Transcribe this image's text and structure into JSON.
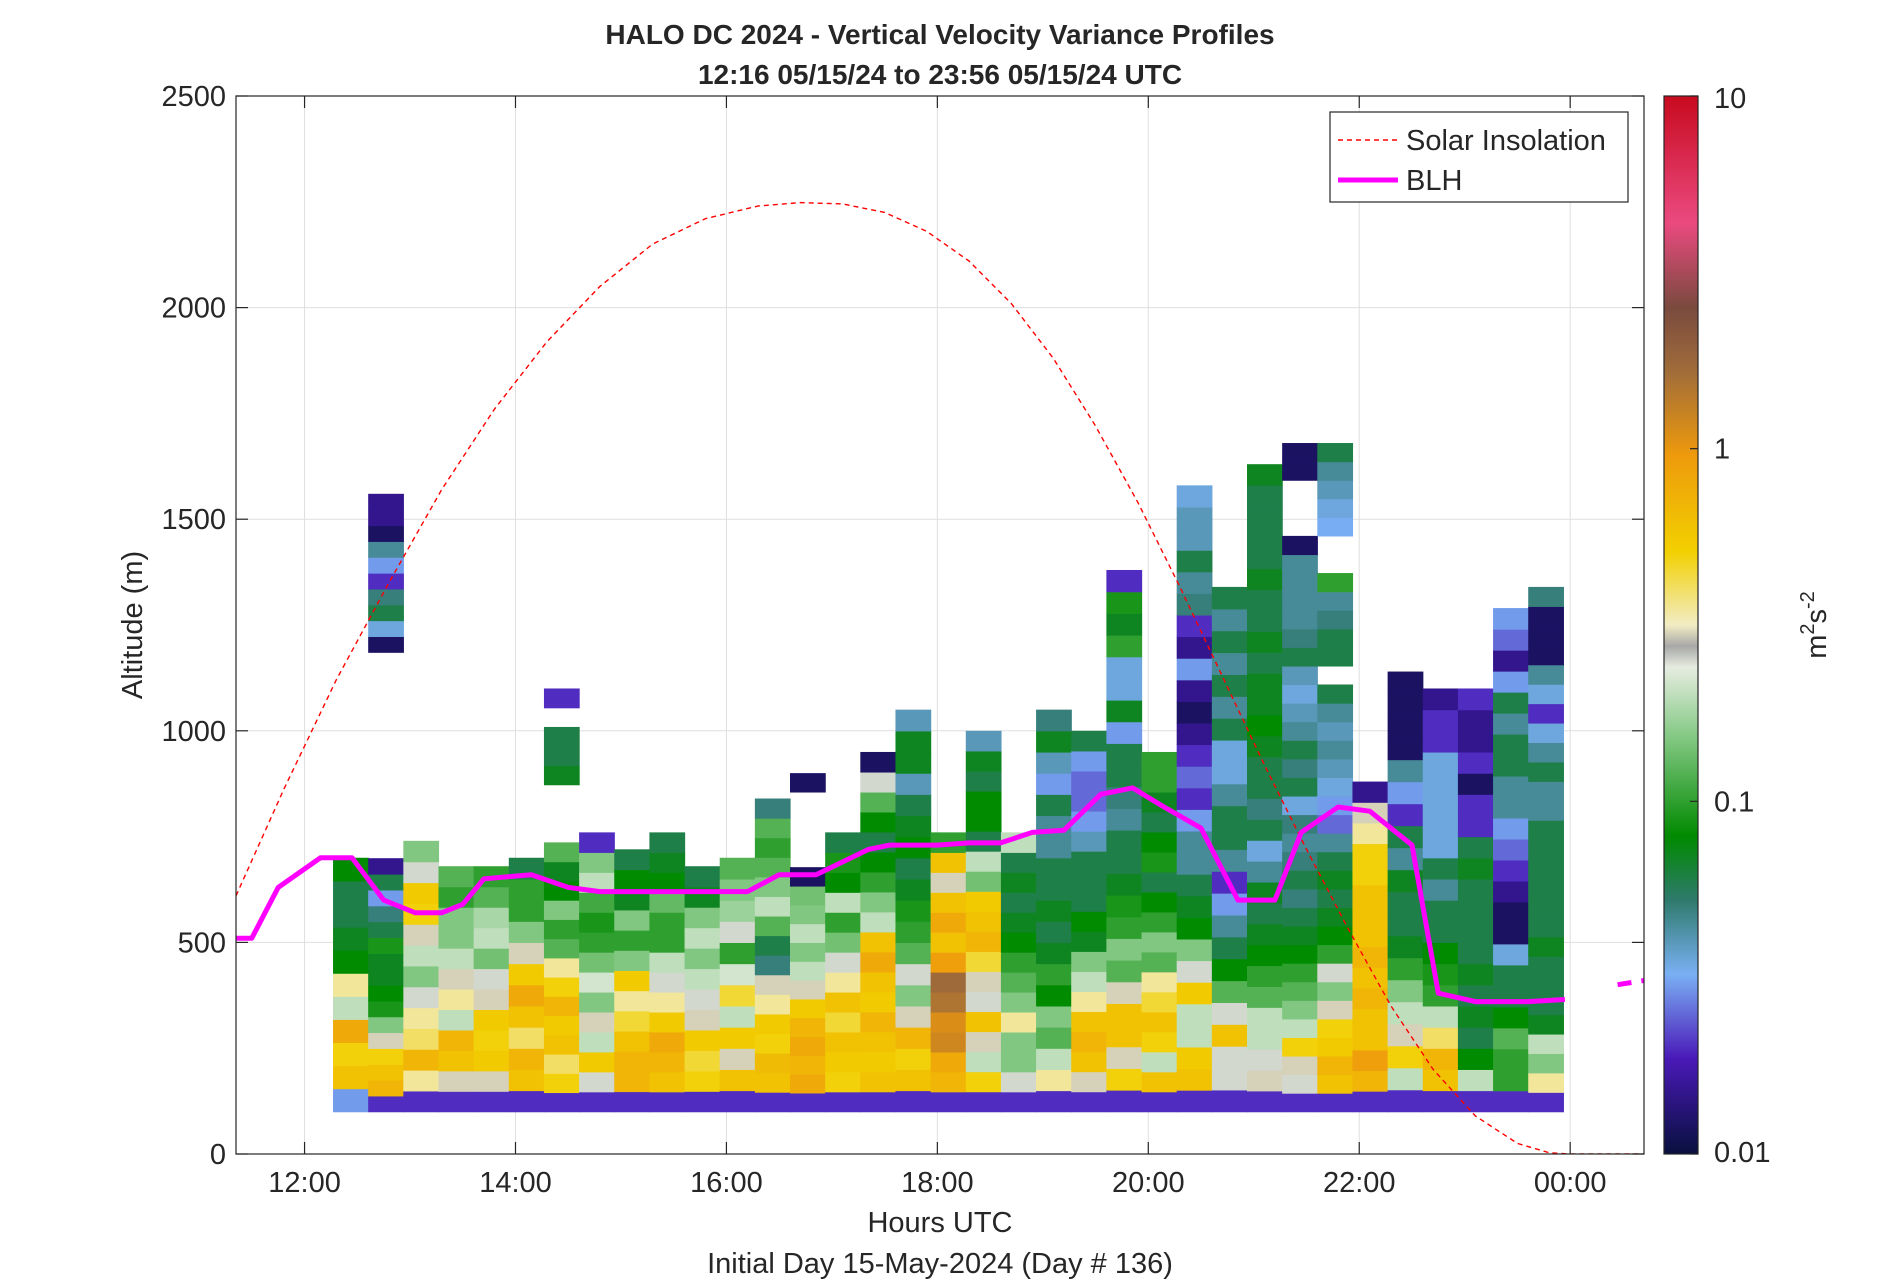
{
  "chart_data": {
    "type": "heatmap",
    "title": "HALO DC 2024 - Vertical Velocity Variance Profiles",
    "subtitle": "12:16 05/15/24 to 23:56 05/15/24  UTC",
    "xlabel": "Hours UTC",
    "xlabel2": "Initial Day 15-May-2024 (Day # 136)",
    "ylabel": "Altitude (m)",
    "xlim": [
      11.35,
      24.7
    ],
    "ylim": [
      0,
      2500
    ],
    "x_ticks": [
      12,
      14,
      16,
      18,
      20,
      22,
      24
    ],
    "x_tick_labels": [
      "12:00",
      "14:00",
      "16:00",
      "18:00",
      "20:00",
      "22:00",
      "00:00"
    ],
    "y_ticks": [
      0,
      500,
      1000,
      1500,
      2000,
      2500
    ],
    "y_tick_labels": [
      "0",
      "500",
      "1000",
      "1500",
      "2000",
      "2500"
    ],
    "grid": true,
    "legend_position": "top-right",
    "colorbar": {
      "label_base": "m",
      "label_sup1": "2",
      "label_mid": "s",
      "label_sup2": "-2",
      "scale": "log",
      "range": [
        0.01,
        10
      ],
      "ticks": [
        0.01,
        0.1,
        1,
        10
      ],
      "tick_labels": [
        "0.01",
        "0.1",
        "1",
        "10"
      ]
    },
    "heatmap": {
      "x_start": 12.27,
      "x_step": 0.3333,
      "y_start": 100,
      "y_step": 48,
      "columns": [
        {
          "top": 700,
          "cells": [
            0.03,
            0.6,
            0.5,
            0.8,
            0.2,
            0.35,
            0.08,
            0.07,
            0.06,
            0.06,
            0.08
          ]
        },
        {
          "top": 1560,
          "cells": [
            0.02,
            0.7,
            0.6,
            0.5,
            0.3,
            0.15,
            0.09,
            0.08,
            0.07,
            0.07,
            0.09,
            0.06,
            0.05,
            0.03,
            0.06,
            0.015,
            null,
            null,
            null,
            null,
            null,
            null,
            null,
            null,
            null,
            null,
            null,
            null,
            null,
            0.012,
            0.035,
            0.06,
            0.05,
            0.02,
            0.03,
            0.045,
            0.012,
            0.015,
            0.015
          ]
        },
        {
          "top": 740,
          "cells": [
            0.02,
            0.35,
            0.7,
            0.4,
            0.35,
            0.25,
            0.15,
            0.2,
            0.3,
            0.5,
            0.55,
            0.25,
            0.15
          ]
        },
        {
          "top": 680,
          "cells": [
            0.02,
            0.3,
            0.6,
            0.7,
            0.2,
            0.35,
            0.3,
            0.2,
            0.15,
            0.15,
            0.1,
            0.12
          ]
        },
        {
          "top": 680,
          "cells": [
            0.02,
            0.3,
            0.55,
            0.5,
            0.55,
            0.3,
            0.25,
            0.14,
            0.2,
            0.18,
            0.12,
            0.1
          ]
        },
        {
          "top": 700,
          "cells": [
            0.02,
            0.6,
            0.7,
            0.4,
            0.6,
            0.8,
            0.55,
            0.3,
            0.15,
            0.1,
            0.1,
            0.06
          ]
        },
        {
          "top": 1100,
          "cells": [
            0.02,
            0.5,
            0.4,
            0.6,
            0.55,
            0.7,
            0.5,
            0.35,
            0.12,
            0.1,
            0.15,
            0.08,
            0.07,
            0.12,
            null,
            null,
            null,
            0.07,
            0.06,
            0.06,
            null,
            0.02
          ]
        },
        {
          "top": 760,
          "cells": [
            0.02,
            0.25,
            0.55,
            0.2,
            0.3,
            0.15,
            0.22,
            0.14,
            0.1,
            0.09,
            0.11,
            0.2,
            0.15,
            0.02
          ]
        },
        {
          "top": 720,
          "cells": [
            0.02,
            0.7,
            0.7,
            0.6,
            0.45,
            0.35,
            0.55,
            0.15,
            0.1,
            0.15,
            0.07,
            0.08,
            0.06
          ]
        },
        {
          "top": 760,
          "cells": [
            0.02,
            0.6,
            0.7,
            0.8,
            0.55,
            0.35,
            0.25,
            0.2,
            0.1,
            0.1,
            0.13,
            0.08,
            0.07,
            0.06
          ]
        },
        {
          "top": 680,
          "cells": [
            0.02,
            0.5,
            0.45,
            0.55,
            0.3,
            0.25,
            0.2,
            0.15,
            0.2,
            0.15,
            0.07,
            0.06
          ]
        },
        {
          "top": 700,
          "cells": [
            0.02,
            0.6,
            0.3,
            0.55,
            0.2,
            0.45,
            0.22,
            0.1,
            0.25,
            0.17,
            0.15,
            0.12
          ]
        },
        {
          "top": 840,
          "cells": [
            0.02,
            0.6,
            0.65,
            0.5,
            0.55,
            0.35,
            0.3,
            0.05,
            0.06,
            0.12,
            0.2,
            0.15,
            0.12,
            0.1,
            0.12,
            0.05
          ]
        },
        {
          "top": 900,
          "cells": [
            0.02,
            0.8,
            0.7,
            0.8,
            0.7,
            0.55,
            0.3,
            0.2,
            0.15,
            0.2,
            0.15,
            0.14,
            0.012,
            null,
            null,
            null,
            null,
            0.012
          ]
        },
        {
          "top": 760,
          "cells": [
            0.02,
            0.5,
            0.55,
            0.6,
            0.45,
            0.6,
            0.35,
            0.25,
            0.14,
            0.1,
            0.2,
            0.08,
            0.09,
            0.06
          ]
        },
        {
          "top": 950,
          "cells": [
            0.02,
            0.6,
            0.55,
            0.6,
            0.7,
            0.55,
            0.6,
            0.8,
            0.6,
            0.2,
            0.15,
            0.1,
            0.08,
            0.06,
            0.08,
            0.12,
            0.25,
            0.012
          ]
        },
        {
          "top": 1050,
          "cells": [
            0.02,
            0.6,
            0.5,
            0.7,
            0.3,
            0.15,
            0.25,
            0.12,
            0.1,
            0.09,
            0.07,
            0.06,
            0.08,
            0.07,
            0.06,
            0.04,
            0.07,
            0.07,
            0.04
          ]
        },
        {
          "top": 760,
          "cells": [
            0.02,
            0.7,
            0.8,
            1.2,
            1.1,
            1.5,
            1.7,
            0.9,
            0.6,
            0.8,
            0.6,
            0.3,
            0.6,
            0.1
          ]
        },
        {
          "top": 1000,
          "cells": [
            0.02,
            0.5,
            0.2,
            0.3,
            0.6,
            0.25,
            0.3,
            0.45,
            0.7,
            0.6,
            0.55,
            0.14,
            0.2,
            0.06,
            0.08,
            0.08,
            0.06,
            0.07,
            0.04
          ]
        },
        {
          "top": 760,
          "cells": [
            0.02,
            0.25,
            0.15,
            0.15,
            0.35,
            0.15,
            0.12,
            0.1,
            0.08,
            0.07,
            0.06,
            0.07,
            0.06,
            0.2
          ]
        },
        {
          "top": 1050,
          "cells": [
            0.02,
            0.35,
            0.2,
            0.12,
            0.15,
            0.08,
            0.1,
            0.07,
            0.06,
            0.07,
            0.06,
            0.06,
            0.045,
            0.045,
            0.06,
            0.03,
            0.04,
            0.07,
            0.05
          ]
        },
        {
          "top": 1000,
          "cells": [
            0.02,
            0.3,
            0.6,
            0.7,
            0.6,
            0.35,
            0.2,
            0.15,
            0.07,
            0.08,
            0.06,
            0.06,
            0.06,
            0.04,
            0.03,
            0.025,
            0.025,
            0.03,
            0.06
          ]
        },
        {
          "top": 1380,
          "cells": [
            0.02,
            0.5,
            0.3,
            0.6,
            0.6,
            0.3,
            0.12,
            0.15,
            0.1,
            0.09,
            0.07,
            0.06,
            0.06,
            0.045,
            0.05,
            0.06,
            0.06,
            0.03,
            0.07,
            0.035,
            0.035,
            0.1,
            0.07,
            0.09,
            0.02
          ]
        },
        {
          "top": 950,
          "cells": [
            0.02,
            0.6,
            0.2,
            0.5,
            0.6,
            0.45,
            0.35,
            0.12,
            0.15,
            0.1,
            0.08,
            0.06,
            0.09,
            0.08,
            0.06,
            0.07,
            0.1,
            0.1
          ]
        },
        {
          "top": 1580,
          "cells": [
            0.02,
            0.6,
            0.55,
            0.2,
            0.2,
            0.55,
            0.25,
            0.15,
            0.08,
            0.07,
            0.06,
            0.045,
            0.045,
            0.03,
            0.02,
            0.025,
            0.02,
            0.015,
            0.012,
            0.015,
            0.03,
            0.015,
            0.02,
            0.05,
            0.045,
            0.06,
            0.04,
            0.04,
            0.035
          ]
        },
        {
          "top": 1340,
          "cells": [
            0.02,
            0.25,
            0.25,
            0.6,
            0.25,
            0.12,
            0.08,
            0.06,
            0.045,
            0.03,
            0.02,
            0.045,
            0.06,
            0.06,
            0.045,
            0.035,
            0.035,
            0.06,
            0.045,
            0.06,
            0.045,
            0.06,
            0.045,
            0.06
          ]
        },
        {
          "top": 1630,
          "cells": [
            0.02,
            0.3,
            0.25,
            0.2,
            0.2,
            0.12,
            0.1,
            0.08,
            0.07,
            0.06,
            0.07,
            0.045,
            0.035,
            0.06,
            0.05,
            0.06,
            0.06,
            0.07,
            0.08,
            0.07,
            0.07,
            0.06,
            0.07,
            0.06,
            0.06,
            0.07,
            0.06,
            0.06,
            0.06,
            0.06,
            0.07
          ]
        },
        {
          "top": 1680,
          "cells": [
            0.02,
            0.25,
            0.3,
            0.5,
            0.2,
            0.15,
            0.12,
            0.1,
            0.08,
            0.07,
            0.06,
            0.05,
            0.06,
            0.05,
            0.045,
            0.05,
            0.035,
            0.06,
            0.05,
            0.06,
            0.045,
            0.04,
            0.035,
            0.04,
            0.06,
            0.05,
            0.045,
            0.045,
            0.045,
            0.045,
            0.012,
            null,
            null,
            null,
            0.012,
            0.012
          ]
        },
        {
          "top": 1680,
          "cells": [
            0.02,
            0.6,
            0.7,
            0.55,
            0.5,
            0.3,
            0.15,
            0.25,
            0.1,
            0.08,
            0.07,
            0.06,
            0.07,
            0.06,
            0.045,
            0.025,
            0.03,
            0.035,
            0.04,
            0.045,
            0.04,
            0.045,
            0.06,
            null,
            0.06,
            0.06,
            0.05,
            0.045,
            0.1,
            null,
            null,
            0.032,
            0.035,
            0.04,
            0.045,
            0.06
          ]
        },
        {
          "top": 880,
          "cells": [
            0.02,
            0.7,
            0.9,
            0.6,
            0.6,
            0.7,
            0.6,
            0.7,
            0.6,
            0.6,
            0.6,
            0.5,
            0.5,
            0.35,
            0.3,
            0.015
          ]
        },
        {
          "top": 1140,
          "cells": [
            0.02,
            0.2,
            0.5,
            0.3,
            0.2,
            0.15,
            0.1,
            0.07,
            0.06,
            0.06,
            0.07,
            0.045,
            0.06,
            0.02,
            0.03,
            0.045,
            0.012,
            0.012,
            0.012,
            0.012
          ]
        },
        {
          "top": 1100,
          "cells": [
            0.02,
            0.6,
            0.7,
            0.4,
            0.2,
            0.1,
            0.09,
            0.08,
            0.06,
            0.06,
            0.045,
            0.06,
            0.035,
            0.035,
            0.035,
            0.035,
            0.035,
            0.02,
            0.02,
            0.015
          ]
        },
        {
          "top": 1100,
          "cells": [
            0.02,
            0.2,
            0.08,
            0.06,
            0.07,
            0.06,
            0.07,
            0.06,
            0.06,
            0.06,
            0.06,
            0.07,
            0.06,
            0.02,
            0.02,
            0.012,
            0.02,
            0.015,
            0.015,
            0.02
          ]
        },
        {
          "top": 1290,
          "cells": [
            0.02,
            0.1,
            0.1,
            0.12,
            0.08,
            0.06,
            0.06,
            0.035,
            0.012,
            0.012,
            0.015,
            0.02,
            0.025,
            0.03,
            0.045,
            0.045,
            0.06,
            0.06,
            0.045,
            0.06,
            0.03,
            0.015,
            0.025,
            0.03
          ]
        },
        {
          "top": 1340,
          "cells": [
            0.02,
            0.35,
            0.15,
            0.2,
            0.07,
            0.06,
            0.06,
            0.06,
            0.07,
            0.06,
            0.06,
            0.06,
            0.06,
            0.06,
            0.06,
            0.045,
            0.045,
            0.06,
            0.045,
            0.035,
            0.02,
            0.035,
            0.045,
            0.012,
            0.012,
            0.012,
            0.05
          ]
        }
      ]
    },
    "series": [
      {
        "name": "Solar Insolation",
        "color": "#ff0000",
        "style": "dashed",
        "x": [
          11.35,
          11.8,
          12.3,
          12.8,
          13.3,
          13.8,
          14.3,
          14.8,
          15.3,
          15.8,
          16.3,
          16.7,
          17.1,
          17.5,
          17.9,
          18.3,
          18.7,
          19.1,
          19.5,
          19.9,
          20.3,
          20.7,
          21.1,
          21.5,
          21.9,
          22.3,
          22.7,
          23.1,
          23.5,
          23.8,
          24.0,
          24.2,
          24.7
        ],
        "y": [
          610,
          860,
          1120,
          1350,
          1570,
          1760,
          1920,
          2050,
          2150,
          2210,
          2240,
          2248,
          2245,
          2225,
          2180,
          2110,
          2010,
          1880,
          1720,
          1540,
          1340,
          1130,
          920,
          720,
          530,
          350,
          200,
          90,
          25,
          3,
          0,
          0,
          0
        ]
      },
      {
        "name": "BLH",
        "color": "#ff00ff",
        "style": "solid",
        "x": [
          11.35,
          11.5,
          11.75,
          12.15,
          12.45,
          12.75,
          13.05,
          13.3,
          13.5,
          13.7,
          14.15,
          14.5,
          14.8,
          15.2,
          15.8,
          16.2,
          16.5,
          16.85,
          17.1,
          17.35,
          17.55,
          18.0,
          18.3,
          18.6,
          18.9,
          19.2,
          19.55,
          19.85,
          20.15,
          20.5,
          20.85,
          21.2,
          21.45,
          21.8,
          22.1,
          22.5,
          22.75,
          23.1,
          23.35,
          23.6,
          23.95
        ],
        "y": [
          510,
          510,
          630,
          700,
          700,
          600,
          570,
          570,
          590,
          650,
          660,
          630,
          620,
          620,
          620,
          620,
          660,
          660,
          690,
          720,
          730,
          730,
          735,
          735,
          760,
          765,
          850,
          865,
          820,
          770,
          600,
          600,
          760,
          820,
          810,
          730,
          380,
          360,
          360,
          360,
          365
        ]
      },
      {
        "name": "",
        "color": "#ff00ff",
        "style": "dashed",
        "x": [
          24.45,
          24.7
        ],
        "y": [
          400,
          410
        ]
      }
    ]
  },
  "legend": {
    "solar_label": "Solar Insolation",
    "blh_label": "BLH"
  }
}
